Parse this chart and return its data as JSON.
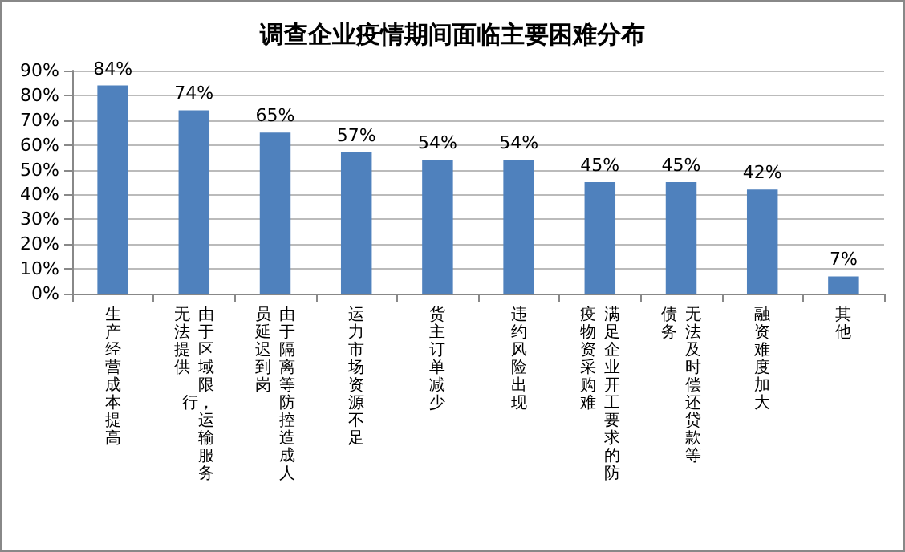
{
  "chart_data": {
    "type": "bar",
    "title": "调查企业疫情期间面临主要困难分布",
    "categories": [
      "生产经营成本提高",
      "由于区域限行，运输服务无法提供",
      "由于隔离等防控造成人员延迟到岗",
      "运力市场资源不足",
      "货主订单减少",
      "违约风险出现",
      "满足企业开工要求的防疫物资采购难",
      "无法及时偿还贷款等债务",
      "融资难度加大",
      "其他"
    ],
    "values": [
      84,
      74,
      65,
      57,
      54,
      54,
      45,
      45,
      42,
      7
    ],
    "value_labels": [
      "84%",
      "74%",
      "65%",
      "57%",
      "54%",
      "54%",
      "45%",
      "45%",
      "42%",
      "7%"
    ],
    "color": "#4f81bd",
    "ylim": [
      0,
      90
    ],
    "yticks": [
      {
        "value": 0,
        "label": "0%"
      },
      {
        "value": 10,
        "label": "10%"
      },
      {
        "value": 20,
        "label": "20%"
      },
      {
        "value": 30,
        "label": "30%"
      },
      {
        "value": 40,
        "label": "40%"
      },
      {
        "value": 50,
        "label": "50%"
      },
      {
        "value": 60,
        "label": "60%"
      },
      {
        "value": 70,
        "label": "70%"
      },
      {
        "value": 80,
        "label": "80%"
      },
      {
        "value": 90,
        "label": "90%"
      }
    ],
    "grid": "y"
  }
}
